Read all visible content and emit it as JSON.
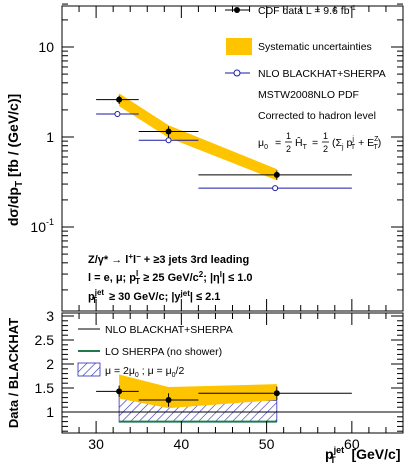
{
  "chart_data": [
    {
      "type": "scatter",
      "panel": "top",
      "ylabel": "dσ/dp_T [fb / (GeV/c)]",
      "yscale": "log",
      "ylim": [
        0.02,
        40
      ],
      "xlim": [
        26,
        66
      ],
      "ytick_labels": [
        "10",
        "1",
        "10⁻¹"
      ],
      "legend_placement": "top-right",
      "legend": {
        "data": "CDF data  L = 9.6 fb⁻¹",
        "syst": "Systematic uncertainties",
        "nlo": "NLO BLACKHAT+SHERPA",
        "pdf": "MSTW2008NLO PDF",
        "corr": "Corrected to hadron level",
        "mu0": "μ₀ = ½ Ĥ_T = ½ (Σ_j p_T^j + E_T^Z)"
      },
      "annotations": {
        "process": "Z/γ* → l⁺l⁻ + ≥3 jets 3rd leading",
        "lepton_cuts": "l = e, μ; p_T^l ≥ 25 GeV/c²; |η^l| ≤ 1.0",
        "jet_cuts": "p_T^jet ≥ 30 GeV/c; |y^jet| ≤ 2.1"
      },
      "series": [
        {
          "name": "CDF data  L = 9.6 fb⁻¹",
          "x": [
            32.7,
            38.5,
            51.2
          ],
          "y": [
            2.6,
            1.15,
            0.38
          ],
          "y_err_low": [
            0.28,
            0.16,
            0.045
          ],
          "y_err_high": [
            0.28,
            0.16,
            0.045
          ],
          "x_bins": [
            [
              30,
              35
            ],
            [
              35,
              42
            ],
            [
              42,
              60
            ]
          ],
          "syst_band_low": [
            2.2,
            0.98,
            0.33
          ],
          "syst_band_high": [
            3.05,
            1.35,
            0.44
          ]
        },
        {
          "name": "NLO BLACKHAT+SHERPA",
          "x_bins": [
            [
              30,
              35
            ],
            [
              35,
              42
            ],
            [
              42,
              60
            ]
          ],
          "y": [
            1.8,
            0.92,
            0.27
          ]
        }
      ]
    },
    {
      "type": "scatter",
      "panel": "bottom",
      "xlabel": "p_T^jet [GeV/c]",
      "ylabel": "Data / BLACKHAT",
      "xlim": [
        26,
        66
      ],
      "ylim": [
        0.55,
        3.05
      ],
      "xticks": [
        30,
        40,
        50,
        60
      ],
      "yticks": [
        1,
        1.5,
        2,
        2.5,
        3
      ],
      "legend": {
        "nlo": "NLO BLACKHAT+SHERPA",
        "lo": "LO SHERPA (no shower)",
        "scale": "μ = 2μ₀ ; μ = μ₀/2"
      },
      "series": [
        {
          "name": "Data / BLACKHAT",
          "x": [
            32.7,
            38.5,
            51.2
          ],
          "y": [
            1.43,
            1.25,
            1.39
          ],
          "y_err": [
            0.12,
            0.14,
            0.14
          ],
          "x_bins": [
            [
              30,
              35
            ],
            [
              35,
              42
            ],
            [
              42,
              60
            ]
          ],
          "syst_band_low": [
            1.28,
            1.08,
            1.25
          ],
          "syst_band_high": [
            1.78,
            1.52,
            1.58
          ]
        },
        {
          "name": "NLO BLACKHAT+SHERPA",
          "y": 1.0
        },
        {
          "name": "LO SHERPA (no shower)",
          "y": [
            0.8,
            0.8,
            0.8
          ]
        },
        {
          "name": "μ = 2μ₀ ; μ = μ₀/2",
          "band_low": [
            0.79,
            0.79,
            0.8
          ],
          "band_high": [
            1.3,
            1.26,
            1.24
          ]
        }
      ]
    }
  ]
}
